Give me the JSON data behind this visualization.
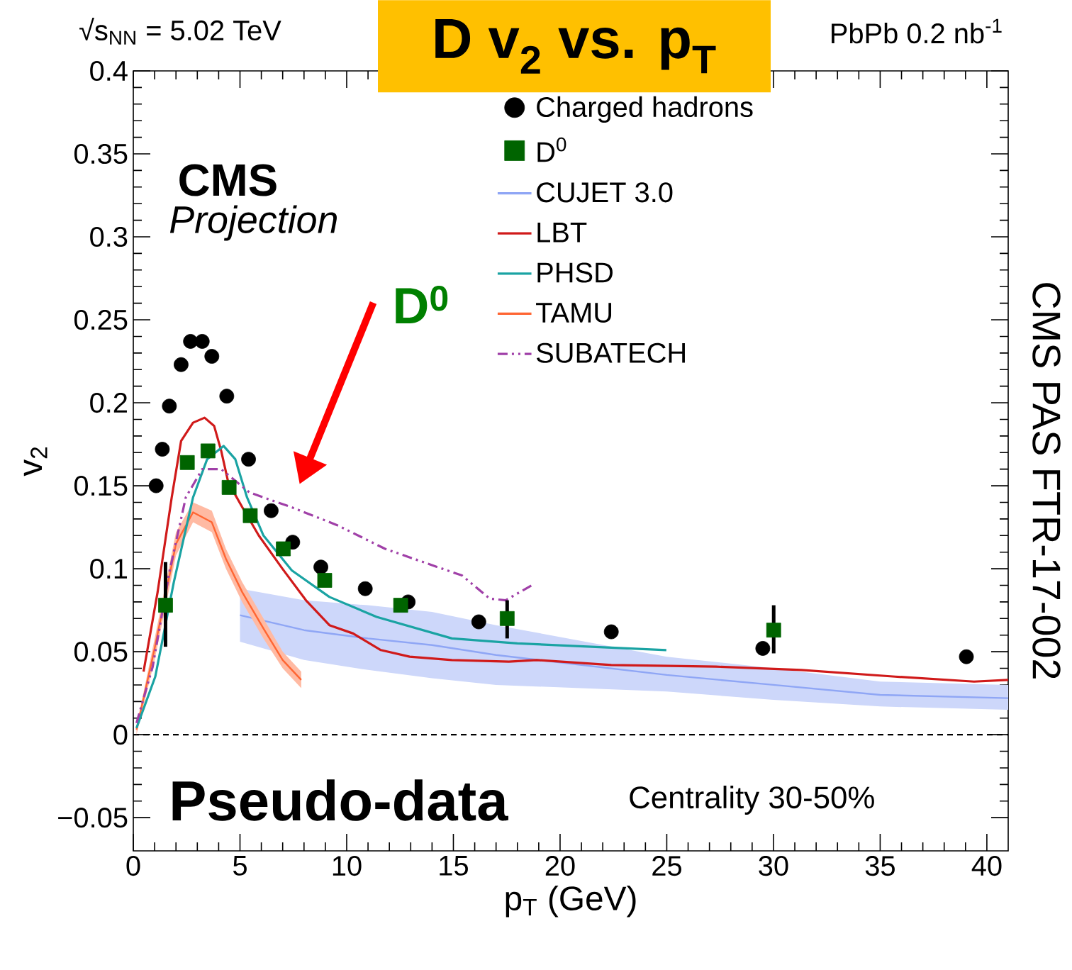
{
  "chart_data": {
    "type": "line",
    "title": "D v$_{2}$ vs. p$_{T}$",
    "xlabel": "p$_{T}$ (GeV)",
    "ylabel": "v$_{2}$",
    "xlim": [
      0,
      41
    ],
    "ylim": [
      -0.07,
      0.4
    ],
    "xticks": [
      0,
      5,
      10,
      15,
      20,
      25,
      30,
      35,
      40
    ],
    "yticks": [
      {
        "value": -0.05,
        "label": "−0.05"
      },
      0,
      0.05,
      0.1,
      0.15,
      0.2,
      0.25,
      0.3,
      0.35,
      0.4
    ],
    "legend": "top right",
    "ref_lines": [
      {
        "axis": "y",
        "value": 0,
        "line_style": "dashed",
        "color": "#000000"
      }
    ],
    "annotations": [
      "√s$_{NN}$ = 5.02 TeV",
      "PbPb 0.2 nb$^{-1}$",
      "CMS",
      "Projection",
      "CMS PAS FTR-17-002",
      "Pseudo-data",
      "Centrality 30-50%",
      "D$^{0}$"
    ],
    "series": [
      {
        "name": "Charged hadrons",
        "type": "scatter",
        "marker": "circle",
        "color": "#000000",
        "x": [
          1.07,
          1.36,
          1.69,
          2.24,
          2.68,
          3.23,
          3.68,
          4.38,
          5.4,
          6.46,
          7.47,
          8.79,
          10.87,
          12.88,
          16.19,
          22.4,
          29.5,
          39.04
        ],
        "values": [
          0.15,
          0.172,
          0.198,
          0.223,
          0.237,
          0.237,
          0.228,
          0.204,
          0.166,
          0.135,
          0.116,
          0.101,
          0.088,
          0.08,
          0.068,
          0.062,
          0.052,
          0.047
        ]
      },
      {
        "name": "D$^{0}$",
        "type": "scatter",
        "marker": "square",
        "color": "#006400",
        "x": [
          1.51,
          2.53,
          3.5,
          4.49,
          5.48,
          7.03,
          8.97,
          12.53,
          17.52,
          30.01
        ],
        "values": [
          0.078,
          0.164,
          0.171,
          0.149,
          0.132,
          0.112,
          0.093,
          0.078,
          0.07,
          0.063
        ],
        "errors": [
          [
            0.053,
            0.104
          ],
          null,
          null,
          null,
          null,
          null,
          null,
          null,
          [
            0.058,
            0.081
          ],
          [
            0.049,
            0.078
          ]
        ]
      },
      {
        "name": "CUJET 3.0",
        "color": "#8fa6f5",
        "x": [
          5,
          8,
          11,
          14,
          17,
          25,
          30,
          35,
          41
        ],
        "values": [
          0.072,
          0.063,
          0.058,
          0.054,
          0.048,
          0.036,
          0.03,
          0.024,
          0.022
        ],
        "lower": [
          0.056,
          0.045,
          0.039,
          0.034,
          0.03,
          0.026,
          0.021,
          0.017,
          0.015
        ],
        "upper": [
          0.088,
          0.081,
          0.078,
          0.074,
          0.066,
          0.047,
          0.04,
          0.032,
          0.03
        ]
      },
      {
        "name": "LBT",
        "color": "#d01a1a",
        "x": [
          0.48,
          1.14,
          1.8,
          2.24,
          2.8,
          3.34,
          3.79,
          4.12,
          4.45,
          5.11,
          5.88,
          6.99,
          8.09,
          9.19,
          10.3,
          11.6,
          12.95,
          14.93,
          17.6,
          18.9,
          22.4,
          27.3,
          31.3,
          35.7,
          39.4,
          41
        ],
        "values": [
          0.038,
          0.086,
          0.143,
          0.177,
          0.188,
          0.191,
          0.186,
          0.171,
          0.152,
          0.137,
          0.12,
          0.1,
          0.081,
          0.066,
          0.061,
          0.051,
          0.047,
          0.045,
          0.044,
          0.045,
          0.042,
          0.041,
          0.039,
          0.035,
          0.032,
          0.033
        ]
      },
      {
        "name": "PHSD",
        "color": "#1aa3a3",
        "x": [
          0.15,
          1.03,
          1.9,
          2.8,
          3.46,
          4.23,
          4.78,
          5.33,
          6.1,
          7.43,
          9.19,
          11.4,
          14.93,
          18.0,
          24.98
        ],
        "values": [
          0.004,
          0.035,
          0.092,
          0.143,
          0.166,
          0.174,
          0.166,
          0.143,
          0.12,
          0.099,
          0.083,
          0.071,
          0.058,
          0.055,
          0.051
        ]
      },
      {
        "name": "TAMU",
        "color": "#ff6633",
        "x": [
          0.15,
          1.0,
          2.0,
          2.8,
          3.68,
          4.34,
          5.1,
          6.1,
          7.0,
          7.87
        ],
        "values": [
          0.003,
          0.052,
          0.115,
          0.134,
          0.128,
          0.106,
          0.086,
          0.064,
          0.045,
          0.033
        ],
        "lower": [
          0.0,
          0.045,
          0.108,
          0.128,
          0.122,
          0.1,
          0.08,
          0.058,
          0.04,
          0.028
        ],
        "upper": [
          0.005,
          0.058,
          0.122,
          0.14,
          0.135,
          0.112,
          0.092,
          0.07,
          0.05,
          0.038
        ]
      },
      {
        "name": "SUBATECH",
        "line_style": "dashed",
        "color": "#a040a8",
        "x": [
          0.15,
          0.91,
          1.69,
          2.46,
          3.23,
          4.12,
          5.44,
          7.43,
          9.6,
          11.8,
          14.93,
          15.4,
          16.7,
          17.45,
          18.8
        ],
        "values": [
          0.007,
          0.041,
          0.098,
          0.143,
          0.16,
          0.16,
          0.146,
          0.137,
          0.126,
          0.112,
          0.098,
          0.096,
          0.082,
          0.081,
          0.091
        ]
      }
    ]
  }
}
